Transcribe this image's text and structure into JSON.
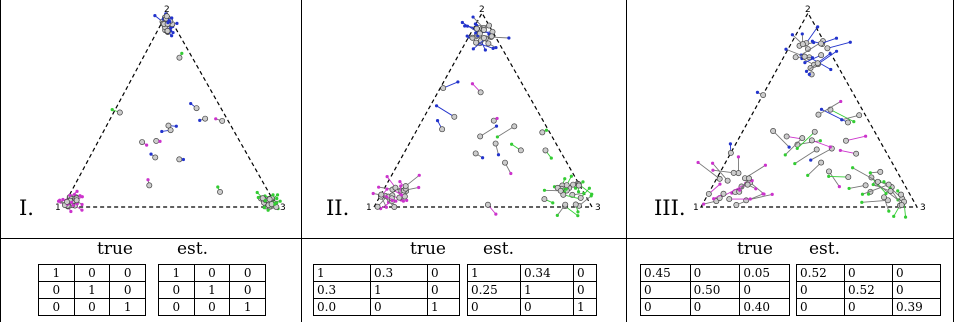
{
  "panels": [
    {
      "roman": "I.",
      "headers": {
        "true": "true",
        "est": "est."
      },
      "vertex_labels": {
        "top": "2",
        "left": "1",
        "right": "3"
      },
      "true_matrix": [
        [
          "1",
          "0",
          "0"
        ],
        [
          "0",
          "1",
          "0"
        ],
        [
          "0",
          "0",
          "1"
        ]
      ],
      "est_matrix": [
        [
          "1",
          "0",
          "0"
        ],
        [
          "0",
          "1",
          "0"
        ],
        [
          "0",
          "0",
          "1"
        ]
      ]
    },
    {
      "roman": "II.",
      "headers": {
        "true": "true",
        "est": "est."
      },
      "vertex_labels": {
        "top": "2",
        "left": "1",
        "right": "3"
      },
      "true_matrix": [
        [
          "1",
          "0.3",
          "0"
        ],
        [
          "0.3",
          "1",
          "0"
        ],
        [
          "0.0",
          "0",
          "1"
        ]
      ],
      "est_matrix": [
        [
          "1",
          "0.34",
          "0"
        ],
        [
          "0.25",
          "1",
          "0"
        ],
        [
          "0",
          "0",
          "1"
        ]
      ]
    },
    {
      "roman": "III.",
      "headers": {
        "true": "true",
        "est": "est."
      },
      "vertex_labels": {
        "top": "2",
        "left": "1",
        "right": "3"
      },
      "true_matrix": [
        [
          "0.45",
          "0",
          "0.05"
        ],
        [
          "0",
          "0.50",
          "0"
        ],
        [
          "0",
          "0",
          "0.40"
        ]
      ],
      "est_matrix": [
        [
          "0.52",
          "0",
          "0"
        ],
        [
          "0",
          "0.52",
          "0"
        ],
        [
          "0",
          "0",
          "0.39"
        ]
      ]
    }
  ],
  "colors": {
    "vertex1": "#cc33cc",
    "vertex2": "#2233cc",
    "vertex3": "#33cc33",
    "gray": "#777777"
  }
}
